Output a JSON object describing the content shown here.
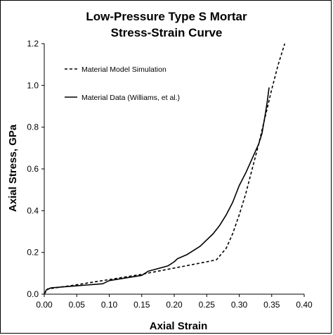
{
  "chart_data": {
    "type": "line",
    "title_line1": "Low-Pressure Type S Mortar",
    "title_line2": "Stress-Strain Curve",
    "xlabel": "Axial Strain",
    "ylabel": "Axial Stress, GPa",
    "xlim": [
      0,
      0.4
    ],
    "ylim": [
      0,
      1.2
    ],
    "x_ticks": [
      "0.00",
      "0.05",
      "0.10",
      "0.15",
      "0.20",
      "0.25",
      "0.30",
      "0.35",
      "0.40"
    ],
    "y_ticks": [
      "0.0",
      "0.2",
      "0.4",
      "0.6",
      "0.8",
      "1.0",
      "1.2"
    ],
    "grid": false,
    "legend_position": "top-left",
    "series": [
      {
        "name": "Material Model Simulation",
        "style": "dashed",
        "color": "#000000",
        "points": [
          [
            0.0,
            0.0
          ],
          [
            0.005,
            0.025
          ],
          [
            0.05,
            0.045
          ],
          [
            0.1,
            0.07
          ],
          [
            0.15,
            0.095
          ],
          [
            0.2,
            0.125
          ],
          [
            0.25,
            0.155
          ],
          [
            0.265,
            0.165
          ],
          [
            0.28,
            0.22
          ],
          [
            0.29,
            0.29
          ],
          [
            0.3,
            0.38
          ],
          [
            0.31,
            0.48
          ],
          [
            0.32,
            0.6
          ],
          [
            0.33,
            0.72
          ],
          [
            0.34,
            0.85
          ],
          [
            0.35,
            0.98
          ],
          [
            0.36,
            1.1
          ],
          [
            0.37,
            1.2
          ]
        ]
      },
      {
        "name": "Material Data (Williams, et al.)",
        "style": "solid",
        "color": "#000000",
        "points": [
          [
            0.0,
            0.0
          ],
          [
            0.003,
            0.02
          ],
          [
            0.01,
            0.03
          ],
          [
            0.05,
            0.04
          ],
          [
            0.09,
            0.05
          ],
          [
            0.1,
            0.065
          ],
          [
            0.15,
            0.09
          ],
          [
            0.16,
            0.11
          ],
          [
            0.19,
            0.135
          ],
          [
            0.2,
            0.155
          ],
          [
            0.205,
            0.17
          ],
          [
            0.22,
            0.19
          ],
          [
            0.24,
            0.23
          ],
          [
            0.26,
            0.29
          ],
          [
            0.27,
            0.33
          ],
          [
            0.28,
            0.38
          ],
          [
            0.29,
            0.44
          ],
          [
            0.3,
            0.52
          ],
          [
            0.31,
            0.58
          ],
          [
            0.32,
            0.65
          ],
          [
            0.33,
            0.72
          ],
          [
            0.335,
            0.77
          ],
          [
            0.34,
            0.86
          ],
          [
            0.343,
            0.92
          ],
          [
            0.346,
            0.99
          ]
        ]
      }
    ]
  }
}
